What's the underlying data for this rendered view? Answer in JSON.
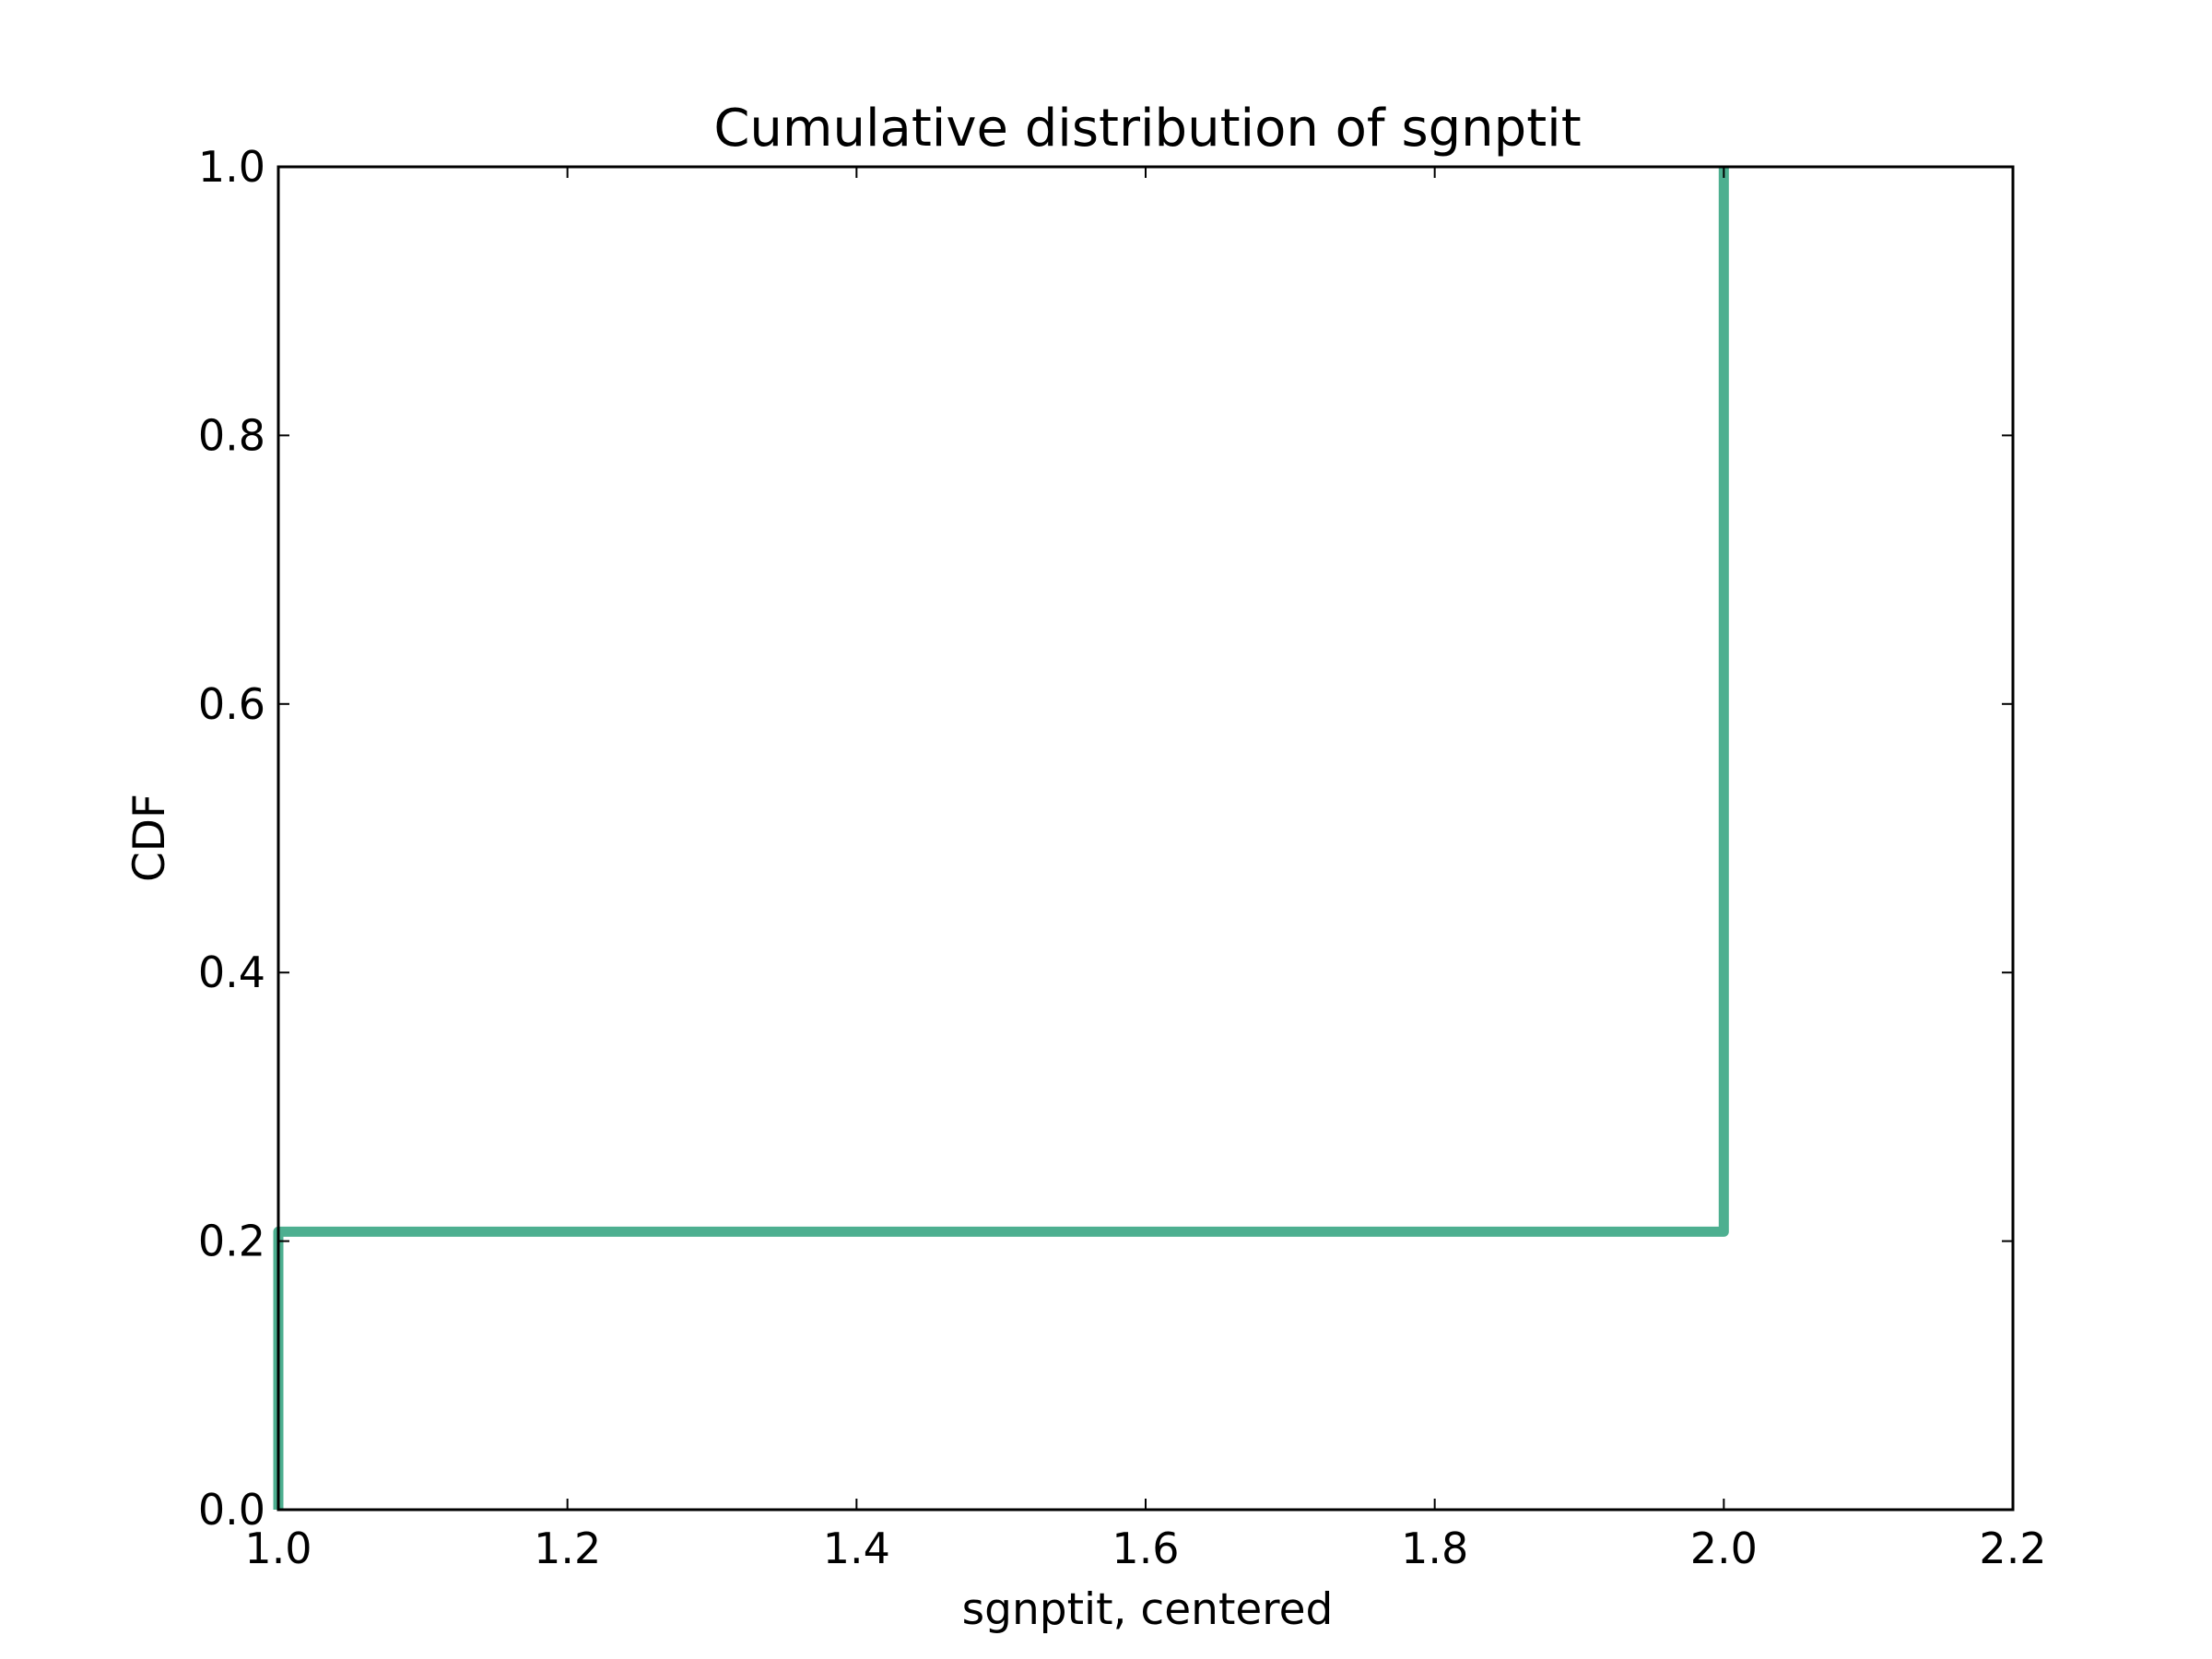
{
  "chart_data": {
    "type": "line",
    "title": "Cumulative distribution of sgnptit",
    "xlabel": "sgnptit, centered",
    "ylabel": "CDF",
    "xlim": [
      1.0,
      2.2
    ],
    "ylim": [
      0.0,
      1.0
    ],
    "x_ticks": [
      "1.0",
      "1.2",
      "1.4",
      "1.6",
      "1.8",
      "2.0",
      "2.2"
    ],
    "y_ticks": [
      "0.0",
      "0.2",
      "0.4",
      "0.6",
      "0.8",
      "1.0"
    ],
    "grid": false,
    "legend": "none",
    "series": [
      {
        "step": true,
        "color": "#4daf90",
        "points": [
          {
            "x": 1.0,
            "y": 0.0
          },
          {
            "x": 1.0,
            "y": 0.207
          },
          {
            "x": 2.0,
            "y": 0.207
          },
          {
            "x": 2.0,
            "y": 1.0
          }
        ]
      }
    ]
  }
}
